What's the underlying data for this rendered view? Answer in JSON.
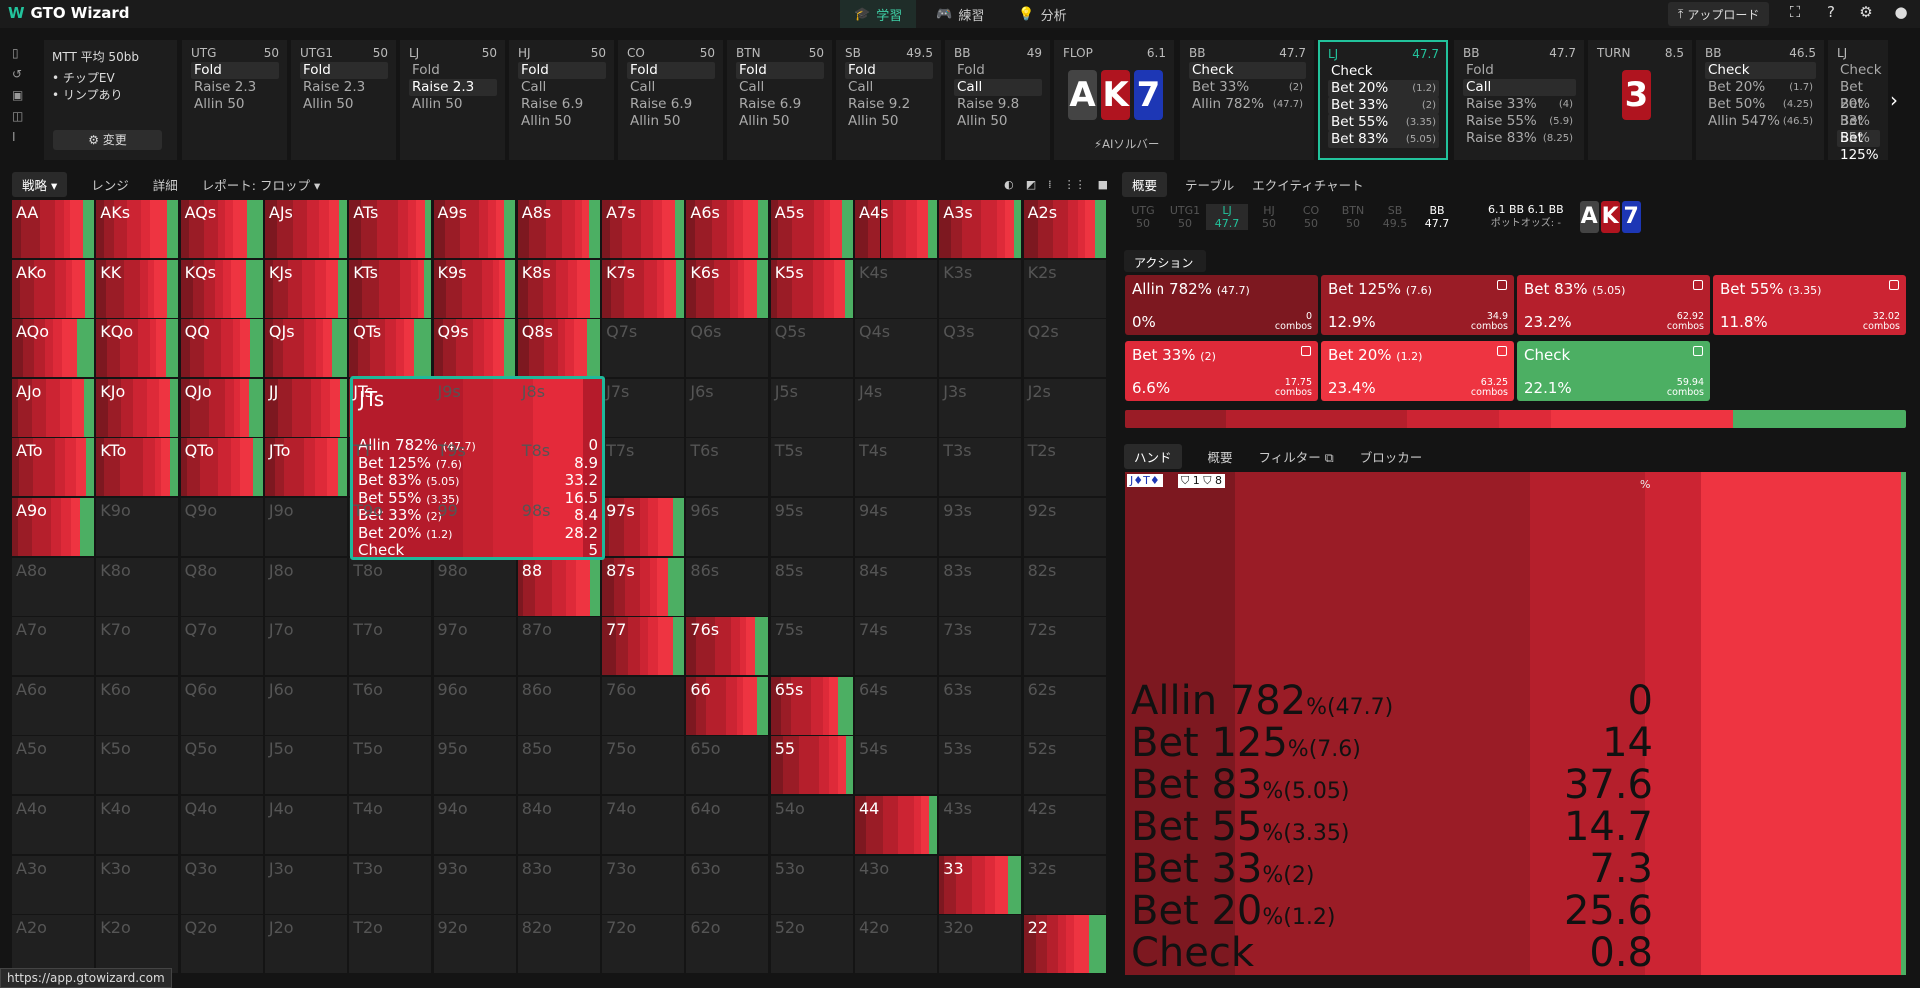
{
  "app": {
    "name": "GTO Wizard",
    "url": "https://app.gtowizard.com"
  },
  "nav": {
    "tabs": [
      {
        "label": "学習",
        "icon": "graduation-cap-icon"
      },
      {
        "label": "練習",
        "icon": "gamepad-icon"
      },
      {
        "label": "分析",
        "icon": "lightbulb-icon"
      }
    ],
    "upload": "アップロード"
  },
  "setup": {
    "title": "MTT 平均 50bb",
    "lines": [
      "チップEV",
      "リンプあり"
    ],
    "change_button": "変更"
  },
  "actions_strip": [
    {
      "pos": "UTG",
      "stack": "50",
      "options": [
        {
          "l": "Fold",
          "sel": true
        },
        {
          "l": "Raise 2.3"
        },
        {
          "l": "Allin 50"
        }
      ]
    },
    {
      "pos": "UTG1",
      "stack": "50",
      "options": [
        {
          "l": "Fold",
          "sel": true
        },
        {
          "l": "Raise 2.3"
        },
        {
          "l": "Allin 50"
        }
      ]
    },
    {
      "pos": "LJ",
      "stack": "50",
      "options": [
        {
          "l": "Fold"
        },
        {
          "l": "Raise 2.3",
          "sel": true
        },
        {
          "l": "Allin 50"
        }
      ]
    },
    {
      "pos": "HJ",
      "stack": "50",
      "options": [
        {
          "l": "Fold",
          "sel": true
        },
        {
          "l": "Call"
        },
        {
          "l": "Raise 6.9"
        },
        {
          "l": "Allin 50"
        }
      ]
    },
    {
      "pos": "CO",
      "stack": "50",
      "options": [
        {
          "l": "Fold",
          "sel": true
        },
        {
          "l": "Call"
        },
        {
          "l": "Raise 6.9"
        },
        {
          "l": "Allin 50"
        }
      ]
    },
    {
      "pos": "BTN",
      "stack": "50",
      "options": [
        {
          "l": "Fold",
          "sel": true
        },
        {
          "l": "Call"
        },
        {
          "l": "Raise 6.9"
        },
        {
          "l": "Allin 50"
        }
      ]
    },
    {
      "pos": "SB",
      "stack": "49.5",
      "options": [
        {
          "l": "Fold",
          "sel": true
        },
        {
          "l": "Call"
        },
        {
          "l": "Raise 9.2"
        },
        {
          "l": "Allin 50"
        }
      ]
    },
    {
      "pos": "BB",
      "stack": "49",
      "options": [
        {
          "l": "Fold"
        },
        {
          "l": "Call",
          "sel": true
        },
        {
          "l": "Raise 9.8"
        },
        {
          "l": "Allin 50"
        }
      ]
    }
  ],
  "flop": {
    "label": "FLOP",
    "pot": "6.1",
    "cards": [
      "A",
      "K",
      "7"
    ],
    "ai_solver": "AIソルバー"
  },
  "street_cols": [
    {
      "pos": "BB",
      "stack": "47.7",
      "options": [
        {
          "l": "Check",
          "sel": true
        },
        {
          "l": "Bet 33%",
          "s": "(2)"
        },
        {
          "l": "Allin 782%",
          "s": "(47.7)"
        }
      ]
    },
    {
      "pos": "LJ",
      "stack": "47.7",
      "active": true,
      "options": [
        {
          "l": "Check",
          "sel": true
        },
        {
          "l": "Bet 20%",
          "s": "(1.2)",
          "sel": true
        },
        {
          "l": "Bet 33%",
          "s": "(2)",
          "sel": true
        },
        {
          "l": "Bet 55%",
          "s": "(3.35)",
          "sel": true
        },
        {
          "l": "Bet 83%",
          "s": "(5.05)",
          "sel": true
        }
      ]
    },
    {
      "pos": "BB",
      "stack": "47.7",
      "options": [
        {
          "l": "Fold"
        },
        {
          "l": "Call",
          "sel": true
        },
        {
          "l": "Raise 33%",
          "s": "(4)"
        },
        {
          "l": "Raise 55%",
          "s": "(5.9)"
        },
        {
          "l": "Raise 83%",
          "s": "(8.25)"
        }
      ]
    }
  ],
  "turn": {
    "label": "TURN",
    "pot": "8.5",
    "card": "3"
  },
  "street_cols2": [
    {
      "pos": "BB",
      "stack": "46.5",
      "options": [
        {
          "l": "Check",
          "sel": true
        },
        {
          "l": "Bet 20%",
          "s": "(1.7)"
        },
        {
          "l": "Bet 50%",
          "s": "(4.25)"
        },
        {
          "l": "Allin 547%",
          "s": "(46.5)"
        }
      ]
    },
    {
      "pos": "LJ",
      "stack": "",
      "options": [
        {
          "l": "Check"
        },
        {
          "l": "Bet 20%"
        },
        {
          "l": "Bet 33%"
        },
        {
          "l": "Bet 55%"
        },
        {
          "l": "Bet 125%",
          "sel": true
        }
      ]
    }
  ],
  "grid_toolbar": {
    "strategy": "戦略",
    "range": "レンジ",
    "detail": "詳細",
    "report": "レポート: フロップ"
  },
  "grid": {
    "cells": [
      "AA",
      "AKs",
      "AQs",
      "AJs",
      "ATs",
      "A9s",
      "A8s",
      "A7s",
      "A6s",
      "A5s",
      "A4s",
      "A3s",
      "A2s",
      "AKo",
      "KK",
      "KQs",
      "KJs",
      "KTs",
      "K9s",
      "K8s",
      "K7s",
      "K6s",
      "K5s",
      "K4s",
      "K3s",
      "K2s",
      "AQo",
      "KQo",
      "QQ",
      "QJs",
      "QTs",
      "Q9s",
      "Q8s",
      "Q7s",
      "Q6s",
      "Q5s",
      "Q4s",
      "Q3s",
      "Q2s",
      "AJo",
      "KJo",
      "QJo",
      "JJ",
      "JTs",
      "J9s",
      "J8s",
      "J7s",
      "J6s",
      "J5s",
      "J4s",
      "J3s",
      "J2s",
      "ATo",
      "KTo",
      "QTo",
      "JTo",
      "TT",
      "T9s",
      "T8s",
      "T7s",
      "T6s",
      "T5s",
      "T4s",
      "T3s",
      "T2s",
      "A9o",
      "K9o",
      "Q9o",
      "J9o",
      "T9o",
      "99",
      "98s",
      "97s",
      "96s",
      "95s",
      "94s",
      "93s",
      "92s",
      "A8o",
      "K8o",
      "Q8o",
      "J8o",
      "T8o",
      "98o",
      "88",
      "87s",
      "86s",
      "85s",
      "84s",
      "83s",
      "82s",
      "A7o",
      "K7o",
      "Q7o",
      "J7o",
      "T7o",
      "97o",
      "87o",
      "77",
      "76s",
      "75s",
      "74s",
      "73s",
      "72s",
      "A6o",
      "K6o",
      "Q6o",
      "J6o",
      "T6o",
      "96o",
      "86o",
      "76o",
      "66",
      "65s",
      "64s",
      "63s",
      "62s",
      "A5o",
      "K5o",
      "Q5o",
      "J5o",
      "T5o",
      "95o",
      "85o",
      "75o",
      "65o",
      "55",
      "54s",
      "53s",
      "52s",
      "A4o",
      "K4o",
      "Q4o",
      "J4o",
      "T4o",
      "94o",
      "84o",
      "74o",
      "64o",
      "54o",
      "44",
      "43s",
      "42s",
      "A3o",
      "K3o",
      "Q3o",
      "J3o",
      "T3o",
      "93o",
      "83o",
      "73o",
      "63o",
      "53o",
      "43o",
      "33",
      "32s",
      "A2o",
      "K2o",
      "Q2o",
      "J2o",
      "T2o",
      "92o",
      "82o",
      "72o",
      "62o",
      "52o",
      "42o",
      "32o",
      "22"
    ],
    "active": [
      "AA",
      "AKs",
      "AQs",
      "AJs",
      "ATs",
      "A9s",
      "A8s",
      "A7s",
      "A6s",
      "A5s",
      "A4s",
      "A3s",
      "A2s",
      "AKo",
      "KK",
      "KQs",
      "KJs",
      "KTs",
      "K9s",
      "K8s",
      "K7s",
      "K6s",
      "K5s",
      "AQo",
      "KQo",
      "QQ",
      "QJs",
      "QTs",
      "Q9s",
      "Q8s",
      "AJo",
      "KJo",
      "QJo",
      "JJ",
      "JTs",
      "ATo",
      "KTo",
      "QTo",
      "JTo",
      "A9o",
      "97s",
      "88",
      "87s",
      "77",
      "76s",
      "66",
      "65s",
      "55",
      "44",
      "33",
      "22"
    ]
  },
  "tooltip": {
    "hand": "JTs",
    "rows": [
      {
        "l": "Allin 782%",
        "s": "(47.7)",
        "v": "0"
      },
      {
        "l": "Bet 125%",
        "s": "(7.6)",
        "v": "8.9"
      },
      {
        "l": "Bet 83%",
        "s": "(5.05)",
        "v": "33.2"
      },
      {
        "l": "Bet 55%",
        "s": "(3.35)",
        "v": "16.5"
      },
      {
        "l": "Bet 33%",
        "s": "(2)",
        "v": "8.4"
      },
      {
        "l": "Bet 20%",
        "s": "(1.2)",
        "v": "28.2"
      },
      {
        "l": "Check",
        "s": "",
        "v": "5"
      }
    ]
  },
  "right_tabs": [
    "概要",
    "テーブル",
    "エクイティチャート"
  ],
  "seats": [
    {
      "p": "UTG",
      "s": "50"
    },
    {
      "p": "UTG1",
      "s": "50"
    },
    {
      "p": "LJ",
      "s": "47.7",
      "act": true
    },
    {
      "p": "HJ",
      "s": "50"
    },
    {
      "p": "CO",
      "s": "50"
    },
    {
      "p": "BTN",
      "s": "50"
    },
    {
      "p": "SB",
      "s": "49.5"
    },
    {
      "p": "BB",
      "s": "47.7",
      "bb": true
    }
  ],
  "pot": {
    "a": "6.1 BB",
    "b": "6.1 BB",
    "odds": "ポットオッズ: -"
  },
  "action_label": "アクション",
  "action_boxes": [
    {
      "l": "Allin 782%",
      "s": "(47.7)",
      "p": "0%",
      "c": "0",
      "color": "#7d1820"
    },
    {
      "l": "Bet 125%",
      "s": "(7.6)",
      "p": "12.9%",
      "c": "34.9",
      "color": "#9a1c26"
    },
    {
      "l": "Bet 83%",
      "s": "(5.05)",
      "p": "23.2%",
      "c": "62.92",
      "color": "#b51f2c"
    },
    {
      "l": "Bet 55%",
      "s": "(3.35)",
      "p": "11.8%",
      "c": "32.02",
      "color": "#cc2433"
    },
    {
      "l": "Bet 33%",
      "s": "(2)",
      "p": "6.6%",
      "c": "17.75",
      "color": "#de2a39"
    },
    {
      "l": "Bet 20%",
      "s": "(1.2)",
      "p": "23.4%",
      "c": "63.25",
      "color": "#ee3441"
    },
    {
      "l": "Check",
      "s": "",
      "p": "22.1%",
      "c": "59.94",
      "color": "#4caf63"
    }
  ],
  "combos_label": "combos",
  "hand_tabs": [
    "ハンド",
    "概要",
    "フィルター",
    "ブロッカー"
  ],
  "hand_detail": {
    "cards": "J♦T♦",
    "badge1": "1",
    "badge2": "8",
    "pct": "%",
    "rows": [
      {
        "l": "Allin 782",
        "s": "%(47.7)",
        "v": "0"
      },
      {
        "l": "Bet 125",
        "s": "%(7.6)",
        "v": "14"
      },
      {
        "l": "Bet 83",
        "s": "%(5.05)",
        "v": "37.6"
      },
      {
        "l": "Bet 55",
        "s": "%(3.35)",
        "v": "14.7"
      },
      {
        "l": "Bet 33",
        "s": "%(2)",
        "v": "7.3"
      },
      {
        "l": "Bet 20",
        "s": "%(1.2)",
        "v": "25.6"
      },
      {
        "l": "Check",
        "s": "",
        "v": "0.8"
      }
    ]
  },
  "colors": {
    "accent": "#22c39c",
    "check": "#4caf63"
  }
}
